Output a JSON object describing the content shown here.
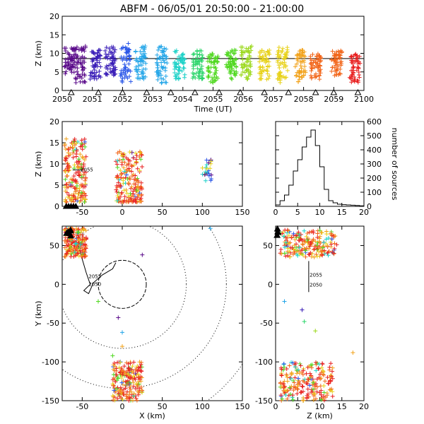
{
  "title": "ABFM - 06/05/01 20:50:00 - 21:00:00",
  "chart_data": [
    {
      "id": "time-height",
      "type": "scatter",
      "xlabel": "Time (UT)",
      "ylabel": "Z (km)",
      "xlim": [
        2050,
        2100
      ],
      "ylim": [
        0,
        20
      ],
      "xticks": [
        "2050",
        "2051",
        "2052",
        "2053",
        "2054",
        "2055",
        "2056",
        "2057",
        "2058",
        "2059",
        "2100"
      ],
      "yticks": [
        "0",
        "5",
        "10",
        "15",
        "20"
      ],
      "reference_line_y": 8.6,
      "color_scale": "rainbow (purple at 20:50 to red at 21:00)",
      "clusters_minutes_after_2050": [
        {
          "t": 0.25,
          "z_range": [
            4.5,
            12
          ]
        },
        {
          "t": 0.6,
          "z_range": [
            2,
            12
          ]
        },
        {
          "t": 1.1,
          "z_range": [
            3,
            11
          ]
        },
        {
          "t": 1.6,
          "z_range": [
            4,
            12
          ]
        },
        {
          "t": 2.1,
          "z_range": [
            2,
            13
          ]
        },
        {
          "t": 2.6,
          "z_range": [
            3,
            12
          ]
        },
        {
          "t": 3.3,
          "z_range": [
            2,
            12
          ]
        },
        {
          "t": 3.9,
          "z_range": [
            3,
            11
          ]
        },
        {
          "t": 4.5,
          "z_range": [
            3,
            11
          ]
        },
        {
          "t": 5.0,
          "z_range": [
            2,
            10
          ]
        },
        {
          "t": 5.6,
          "z_range": [
            3,
            11
          ]
        },
        {
          "t": 6.1,
          "z_range": [
            3,
            12
          ]
        },
        {
          "t": 6.7,
          "z_range": [
            3,
            11
          ]
        },
        {
          "t": 7.3,
          "z_range": [
            2,
            12
          ]
        },
        {
          "t": 7.9,
          "z_range": [
            2,
            11
          ]
        },
        {
          "t": 8.4,
          "z_range": [
            3,
            10
          ]
        },
        {
          "t": 9.1,
          "z_range": [
            4,
            11
          ]
        },
        {
          "t": 9.7,
          "z_range": [
            2,
            10
          ]
        }
      ],
      "triangle_markers_minutes": [
        0.3,
        1.2,
        2.0,
        2.8,
        3.6,
        4.4,
        5.2,
        5.9,
        6.7,
        7.5,
        8.4,
        9.0,
        9.8
      ]
    },
    {
      "id": "x-height",
      "type": "scatter",
      "ylabel": "Z (km)",
      "xlim": [
        -75,
        150
      ],
      "ylim": [
        0,
        20
      ],
      "xticks": [
        "-50",
        "0",
        "50",
        "100",
        "150"
      ],
      "yticks": [
        "0",
        "5",
        "10",
        "15",
        "20"
      ],
      "clusters": [
        {
          "x_range": [
            -72,
            -45
          ],
          "z_range": [
            1,
            16
          ]
        },
        {
          "x_range": [
            -8,
            25
          ],
          "z_range": [
            1,
            13
          ]
        },
        {
          "x_range": [
            100,
            112
          ],
          "z_range": [
            6,
            11
          ]
        }
      ],
      "station_labels": [
        "2055",
        "2050"
      ]
    },
    {
      "id": "height-histogram",
      "type": "bar",
      "xlim": [
        0,
        20
      ],
      "ylim": [
        0,
        600
      ],
      "xticks": [
        "0",
        "5",
        "10",
        "15",
        "20"
      ],
      "yticks": [
        "0",
        "100",
        "200",
        "300",
        "400",
        "500",
        "600"
      ],
      "ylabel": "number of sources",
      "bins": [
        0,
        1,
        2,
        3,
        4,
        5,
        6,
        7,
        8,
        9,
        10,
        11,
        12,
        13,
        14,
        15,
        16,
        17,
        18,
        19
      ],
      "counts": [
        10,
        40,
        80,
        150,
        250,
        330,
        420,
        490,
        540,
        430,
        280,
        120,
        40,
        25,
        15,
        12,
        10,
        8,
        6,
        4
      ]
    },
    {
      "id": "plan-view",
      "type": "scatter",
      "xlabel": "X (km)",
      "ylabel": "Y (km)",
      "xlim": [
        -75,
        150
      ],
      "ylim": [
        -150,
        75
      ],
      "xticks": [
        "-50",
        "0",
        "50",
        "100",
        "150"
      ],
      "yticks": [
        "-150",
        "-100",
        "-50",
        "0",
        "50"
      ],
      "range_rings_km": [
        30,
        80,
        130,
        180
      ],
      "clusters": [
        {
          "x_range": [
            -72,
            -45
          ],
          "y_range": [
            35,
            72
          ]
        },
        {
          "x_range": [
            -12,
            25
          ],
          "y_range": [
            -150,
            -100
          ]
        }
      ],
      "station_labels": [
        "2055",
        "2050"
      ]
    },
    {
      "id": "height-y",
      "type": "scatter",
      "xlabel": "Z (km)",
      "xlim": [
        0,
        20
      ],
      "ylim": [
        -150,
        75
      ],
      "xticks": [
        "0",
        "5",
        "10",
        "15",
        "20"
      ],
      "yticks": [
        "-150",
        "-100",
        "-50",
        "0",
        "50"
      ],
      "clusters": [
        {
          "z_range": [
            1,
            14
          ],
          "y_range": [
            35,
            70
          ]
        },
        {
          "z_range": [
            1,
            13
          ],
          "y_range": [
            -150,
            -100
          ]
        }
      ],
      "station_labels": [
        "2055",
        "2050"
      ]
    }
  ]
}
